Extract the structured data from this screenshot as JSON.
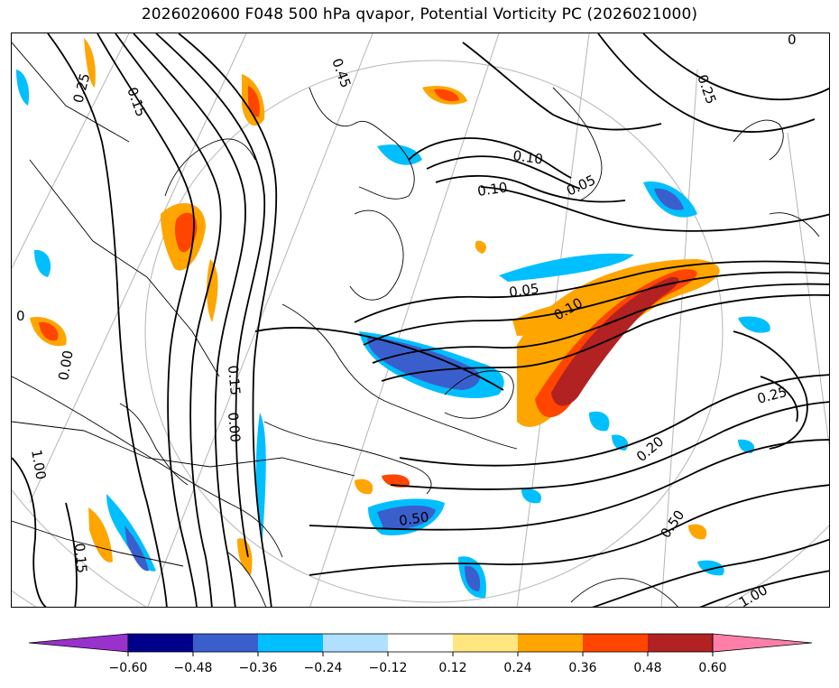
{
  "title": "2026020600 F048 500 hPa qvapor, Potential Vorticity PC (2026021000)",
  "colorbar": {
    "levels": [
      -0.6,
      -0.48,
      -0.36,
      -0.24,
      -0.12,
      0.12,
      0.24,
      0.36,
      0.48,
      0.6
    ],
    "tick_labels": [
      "−0.60",
      "−0.48",
      "−0.36",
      "−0.24",
      "−0.12",
      "0.12",
      "0.24",
      "0.36",
      "0.48",
      "0.60"
    ],
    "under_color": "#9932cc",
    "colors": [
      "#00008b",
      "#3a5fcd",
      "#00bfff",
      "#b0e0ff",
      "#ffffff",
      "#ffe680",
      "#ffa500",
      "#ff4500",
      "#b22222"
    ],
    "over_color": "#ff7fa8"
  },
  "contour_labels": [
    {
      "text": "0.25"
    },
    {
      "text": "0.15"
    },
    {
      "text": "0.10"
    },
    {
      "text": "0.10"
    },
    {
      "text": "0.05"
    },
    {
      "text": "0.25"
    },
    {
      "text": "0.05"
    },
    {
      "text": "0.10"
    },
    {
      "text": "0.25"
    },
    {
      "text": "0.20"
    },
    {
      "text": "0.50"
    },
    {
      "text": "0.50"
    },
    {
      "text": "1.00"
    },
    {
      "text": "0.15"
    },
    {
      "text": "0.00"
    },
    {
      "text": "0.00"
    },
    {
      "text": "1.00"
    },
    {
      "text": "0.15"
    },
    {
      "text": "0"
    },
    {
      "text": "0"
    },
    {
      "text": "0.45"
    }
  ]
}
